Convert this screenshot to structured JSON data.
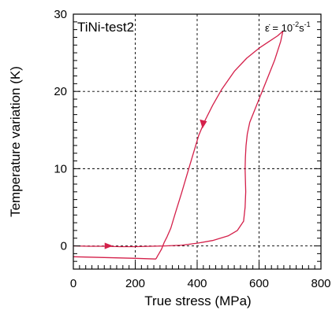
{
  "chart_data": {
    "type": "line",
    "panel_label": "TiNi-test2",
    "rate_annotation": {
      "symbol": "ε̇",
      "equals": " = 10",
      "exponent_1": "-2",
      "unit": "s",
      "exponent_2": "-1"
    },
    "xlabel": "True stress (MPa)",
    "ylabel": "Temperature variation (K)",
    "xlim": [
      0,
      800
    ],
    "ylim": [
      -3,
      30
    ],
    "x_ticks": [
      0,
      200,
      400,
      600,
      800
    ],
    "y_ticks": [
      0,
      10,
      20,
      30
    ],
    "x_tick_labels": [
      "0",
      "200",
      "400",
      "600",
      "800"
    ],
    "y_tick_labels": [
      "0",
      "10",
      "20",
      "30"
    ],
    "grid": "dashed",
    "series_color": "#d4204a",
    "series": [
      {
        "segment": "loading",
        "x": [
          0,
          50,
          100,
          150,
          200,
          250,
          300,
          350,
          400,
          450,
          500,
          530,
          550,
          555,
          557,
          556,
          555,
          556,
          558,
          562,
          570,
          590,
          610,
          630,
          650,
          670,
          677
        ],
        "y": [
          0,
          -0.05,
          -0.05,
          -0.1,
          -0.1,
          -0.05,
          0,
          0.1,
          0.35,
          0.7,
          1.3,
          2,
          3.2,
          5,
          7,
          8.5,
          10,
          11.5,
          13,
          14.5,
          16,
          18,
          20,
          22,
          24,
          26.5,
          27.8
        ]
      },
      {
        "segment": "unloading",
        "x": [
          677,
          660,
          630,
          600,
          560,
          520,
          480,
          450,
          425,
          405,
          390,
          370,
          350,
          330,
          315,
          303,
          293,
          285,
          278,
          272,
          268,
          266,
          200,
          100,
          0
        ],
        "y": [
          27.8,
          27.2,
          26.4,
          25.6,
          24.3,
          22.6,
          20.3,
          18.2,
          16.2,
          14.3,
          12.3,
          9.6,
          6.9,
          4.3,
          2.3,
          1.2,
          0.4,
          -0.4,
          -0.9,
          -1.3,
          -1.6,
          -1.7,
          -1.6,
          -1.5,
          -1.4
        ]
      }
    ],
    "arrows": [
      {
        "x": 120,
        "y": 0,
        "direction": "right"
      },
      {
        "x": 420,
        "y": 15.5,
        "direction": "down-left"
      }
    ]
  }
}
